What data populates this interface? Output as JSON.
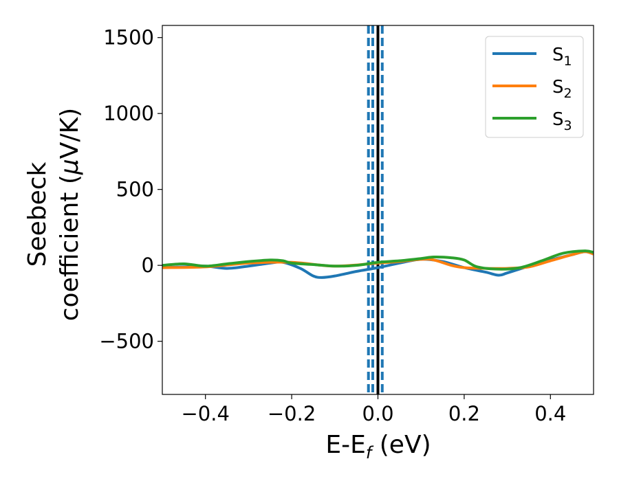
{
  "chart_data": {
    "type": "line",
    "xlabel": {
      "main": "E-E",
      "sub": "f",
      "unit": " (eV)"
    },
    "ylabel": {
      "line1": "Seebeck",
      "line2_prefix": "coefficient  (",
      "mu": "μ",
      "line2_suffix": "V/K)"
    },
    "xlim": [
      -0.5,
      0.5
    ],
    "ylim": [
      -850,
      1580
    ],
    "xticks": [
      -0.4,
      -0.2,
      0.0,
      0.2,
      0.4
    ],
    "xtick_labels": [
      "−0.4",
      "−0.2",
      "0.0",
      "0.2",
      "0.4"
    ],
    "yticks": [
      -500,
      0,
      500,
      1000,
      1500
    ],
    "ytick_labels": [
      "−500",
      "0",
      "500",
      "1000",
      "1500"
    ],
    "grid": false,
    "legend_position": "top-right",
    "vlines": [
      {
        "x": 0.0,
        "style": "solid",
        "color": "#000000"
      },
      {
        "x": -0.022,
        "style": "dashed",
        "color": "#1f77b4"
      },
      {
        "x": -0.012,
        "style": "dashed",
        "color": "#1f77b4"
      },
      {
        "x": 0.01,
        "style": "dashed",
        "color": "#1f77b4"
      }
    ],
    "series": [
      {
        "name": "S",
        "sub": "1",
        "color": "#1f77b4",
        "x": [
          -0.5,
          -0.45,
          -0.4,
          -0.35,
          -0.3,
          -0.25,
          -0.22,
          -0.18,
          -0.15,
          -0.13,
          -0.1,
          -0.05,
          0.0,
          0.05,
          0.1,
          0.15,
          0.2,
          0.25,
          0.28,
          0.3,
          0.35,
          0.4,
          0.45,
          0.48,
          0.5
        ],
        "y": [
          -15,
          -10,
          -5,
          -20,
          -5,
          15,
          20,
          -20,
          -70,
          -80,
          -70,
          -40,
          -15,
          15,
          40,
          25,
          -15,
          -45,
          -65,
          -50,
          -5,
          35,
          70,
          90,
          75
        ]
      },
      {
        "name": "S",
        "sub": "2",
        "color": "#ff7f0e",
        "x": [
          -0.5,
          -0.4,
          -0.3,
          -0.2,
          -0.1,
          0.0,
          0.05,
          0.1,
          0.13,
          0.17,
          0.2,
          0.25,
          0.3,
          0.35,
          0.4,
          0.45,
          0.48,
          0.5
        ],
        "y": [
          -15,
          -10,
          15,
          20,
          -5,
          15,
          25,
          40,
          35,
          0,
          -15,
          -20,
          -20,
          -10,
          30,
          70,
          90,
          75
        ]
      },
      {
        "name": "S",
        "sub": "3",
        "color": "#2ca02c",
        "x": [
          -0.5,
          -0.45,
          -0.4,
          -0.35,
          -0.3,
          -0.25,
          -0.22,
          -0.2,
          -0.15,
          -0.1,
          -0.05,
          0.0,
          0.05,
          0.1,
          0.13,
          0.17,
          0.2,
          0.23,
          0.28,
          0.33,
          0.38,
          0.43,
          0.48,
          0.5
        ],
        "y": [
          0,
          10,
          -5,
          10,
          25,
          35,
          30,
          15,
          5,
          -5,
          0,
          20,
          30,
          45,
          55,
          50,
          35,
          -10,
          -25,
          -15,
          30,
          80,
          95,
          85
        ]
      }
    ]
  }
}
